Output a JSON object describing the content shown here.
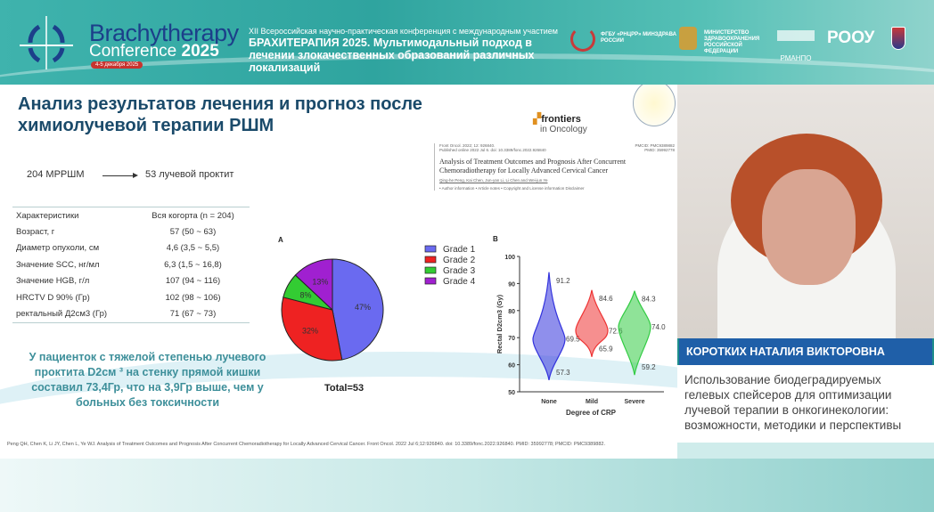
{
  "header": {
    "brand_line1": "Brachytherapy",
    "brand_line2_prefix": "Conference ",
    "brand_line2_year": "2025",
    "date_badge": "4-5 декабря 2025",
    "conf_line1": "XII Всероссийская научно-практическая конференция с международным участием",
    "conf_line2": "БРАХИТЕРАПИЯ 2025. Мультимодальный подход в лечении злокачественных образований различных локализаций",
    "partners": [
      "ФГБУ «РНЦРР» МИНЗДРАВА РОССИИ",
      "МИНИСТЕРСТВО ЗДРАВООХРАНЕНИЯ РОССИЙСКОЙ ФЕДЕРАЦИИ",
      "РМАНПО",
      "РООУ"
    ]
  },
  "slide": {
    "title": "Анализ результатов лечения и прогноз после химиолучевой терапии РШМ",
    "flow_left": "204 МРРШМ",
    "flow_right": "53 лучевой проктит",
    "table": {
      "headers": [
        "Характеристики",
        "Вся когорта (n = 204)"
      ],
      "rows": [
        [
          "Возраст, г",
          "57 (50 ~ 63)"
        ],
        [
          "Диаметр опухоли, см",
          "4,6 (3,5 ~ 5,5)"
        ],
        [
          "Значение SCC, нг/мл",
          "6,3 (1,5 ~ 16,8)"
        ],
        [
          "Значение HGB, г/л",
          "107 (94 ~ 116)"
        ],
        [
          "HRCTV D 90% (Гр)",
          "102 (98 ~ 106)"
        ],
        [
          "ректальный Д2см3 (Гр)",
          "71 (67 ~ 73)"
        ]
      ]
    },
    "conclusion": "У пациенток с тяжелой степенью лучевого проктита  D2см ³  на стенку прямой кишки составил 73,4Гр, что на 3,9Гр выше, чем у больных без  токсичности",
    "journal": "frontiers",
    "journal_sub": "in Oncology",
    "article": {
      "cite": "Front Oncol. 2022; 12: 926840.",
      "published": "Published online 2022 Jul 6. doi: 10.3389/fonc.2022.926840",
      "pmcid": "PMCID: PMC9389882",
      "pmid": "PMID: 35992778",
      "title": "Analysis of Treatment Outcomes and Prognosis After Concurrent Chemoradiotherapy for Locally Advanced Cervical Cancer",
      "authors": "Qing-he Peng, Kai Chen, Jun-yan Li, Li Chen and Wei-jun Ye",
      "links": "• Author information • Article notes • Copyright and License information   Disclaimer"
    },
    "reference": "Peng QH, Chen K, Li JY, Chen L, Ye WJ. Analysis of Treatment Outcomes and Prognosis After Concurrent Chemoradiotherapy for Locally Advanced Cervical Cancer. Front Oncol. 2022 Jul 6;12:926840. doi: 10.3389/fonc.2022.926840. PMID: 35992778; PMCID: PMC9389882."
  },
  "chart_data": [
    {
      "type": "pie",
      "panel": "A",
      "title": "",
      "categories": [
        "Grade 1",
        "Grade 2",
        "Grade 3",
        "Grade 4"
      ],
      "values": [
        47,
        32,
        8,
        13
      ],
      "labels": [
        "47%",
        "32%",
        "8%",
        "13%"
      ],
      "colors": [
        "#6a6af0",
        "#ee2222",
        "#33cc33",
        "#a020d0"
      ],
      "annotation": "Total=53",
      "legend": "right"
    },
    {
      "type": "violin",
      "panel": "B",
      "categories": [
        "None",
        "Mild",
        "Severe"
      ],
      "xlabel": "Degree of CRP",
      "ylabel": "Rectal D2cm3 (Gy)",
      "ylim": [
        50,
        100
      ],
      "yticks": [
        50,
        60,
        70,
        80,
        90,
        100
      ],
      "series": [
        {
          "name": "None",
          "median": 69.5,
          "max": 91.2,
          "min": 57.3,
          "color": "#3333dd"
        },
        {
          "name": "Mild",
          "median": 72.6,
          "max": 84.6,
          "min": 65.9,
          "color": "#ee3333"
        },
        {
          "name": "Severe",
          "median": 74.0,
          "max": 84.3,
          "min": 59.2,
          "color": "#33cc44"
        }
      ]
    }
  ],
  "speaker": {
    "name": "КОРОТКИХ НАТАЛИЯ ВИКТОРОВНА",
    "talk": "Использование биодеградируемых гелевых спейсеров для оптимизации лучевой терапии в онкогинекологии: возможности, методики и перспективы"
  }
}
